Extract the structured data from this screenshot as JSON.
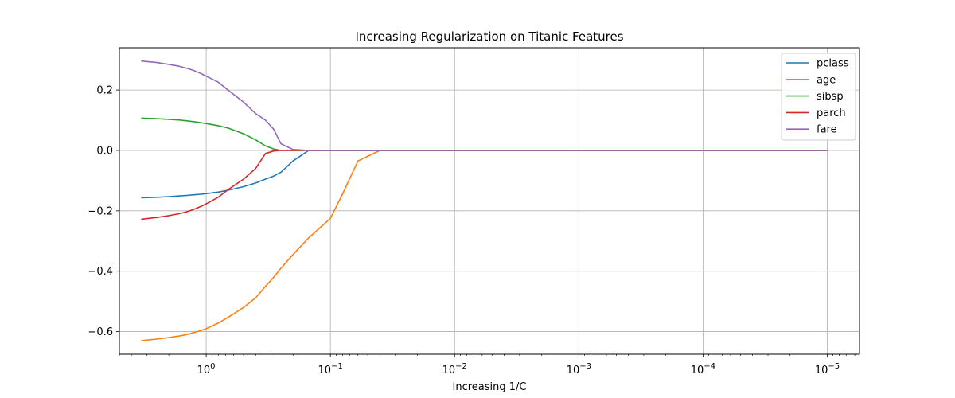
{
  "chart_data": {
    "type": "line",
    "title": "Increasing Regularization on Titanic Features",
    "xlabel": "Increasing 1/C",
    "ylabel": "",
    "x_scale": "log",
    "x_axis_inverted": true,
    "xlim": [
      5,
      5.5e-06
    ],
    "ylim": [
      -0.675,
      0.34
    ],
    "grid": true,
    "legend_position": "top-right",
    "xticks": [
      {
        "value": 1,
        "base": "10",
        "exp": "0"
      },
      {
        "value": 0.1,
        "base": "10",
        "exp": "−1"
      },
      {
        "value": 0.01,
        "base": "10",
        "exp": "−2"
      },
      {
        "value": 0.001,
        "base": "10",
        "exp": "−3"
      },
      {
        "value": 0.0001,
        "base": "10",
        "exp": "−4"
      },
      {
        "value": 1e-05,
        "base": "10",
        "exp": "−5"
      }
    ],
    "yticks": [
      {
        "value": 0.2,
        "label": "0.2"
      },
      {
        "value": 0.0,
        "label": "0.0"
      },
      {
        "value": -0.2,
        "label": "−0.2"
      },
      {
        "value": -0.4,
        "label": "−0.4"
      },
      {
        "value": -0.6,
        "label": "−0.6"
      }
    ],
    "x": [
      3.333,
      2.5,
      2.0,
      1.667,
      1.429,
      1.25,
      1.111,
      1.0,
      0.8,
      0.667,
      0.5,
      0.4,
      0.333,
      0.286,
      0.25,
      0.2,
      0.15,
      0.1,
      0.08,
      0.06,
      0.04,
      0.03,
      0.02,
      0.015,
      0.01,
      0.0001,
      1e-05
    ],
    "series": [
      {
        "name": "pclass",
        "color": "#1f77b4",
        "values": [
          -0.157,
          -0.155,
          -0.153,
          -0.151,
          -0.149,
          -0.147,
          -0.145,
          -0.143,
          -0.138,
          -0.132,
          -0.12,
          -0.108,
          -0.095,
          -0.085,
          -0.072,
          -0.035,
          0,
          0,
          0,
          0,
          0,
          0,
          0,
          0,
          0,
          0,
          0
        ]
      },
      {
        "name": "age",
        "color": "#ff7f0e",
        "values": [
          -0.63,
          -0.625,
          -0.62,
          -0.615,
          -0.61,
          -0.603,
          -0.597,
          -0.59,
          -0.572,
          -0.553,
          -0.52,
          -0.488,
          -0.45,
          -0.42,
          -0.39,
          -0.345,
          -0.29,
          -0.225,
          -0.145,
          -0.035,
          0,
          0,
          0,
          0,
          0,
          0,
          0
        ]
      },
      {
        "name": "sibsp",
        "color": "#2ca02c",
        "values": [
          0.107,
          0.105,
          0.103,
          0.101,
          0.098,
          0.095,
          0.092,
          0.089,
          0.082,
          0.074,
          0.055,
          0.035,
          0.015,
          0.005,
          0,
          0,
          0,
          0,
          0,
          0,
          0,
          0,
          0,
          0,
          0,
          0,
          0
        ]
      },
      {
        "name": "parch",
        "color": "#d62728",
        "values": [
          -0.228,
          -0.222,
          -0.216,
          -0.21,
          -0.203,
          -0.195,
          -0.186,
          -0.177,
          -0.155,
          -0.13,
          -0.095,
          -0.06,
          -0.01,
          -0.002,
          0,
          0,
          0,
          0,
          0,
          0,
          0,
          0,
          0,
          0,
          0,
          0,
          0
        ]
      },
      {
        "name": "fare",
        "color": "#9467bd",
        "values": [
          0.296,
          0.291,
          0.285,
          0.279,
          0.272,
          0.264,
          0.255,
          0.246,
          0.226,
          0.2,
          0.16,
          0.122,
          0.1,
          0.07,
          0.022,
          0.003,
          0,
          0,
          0,
          0,
          0,
          0,
          0,
          0,
          0,
          0,
          0
        ]
      }
    ]
  }
}
